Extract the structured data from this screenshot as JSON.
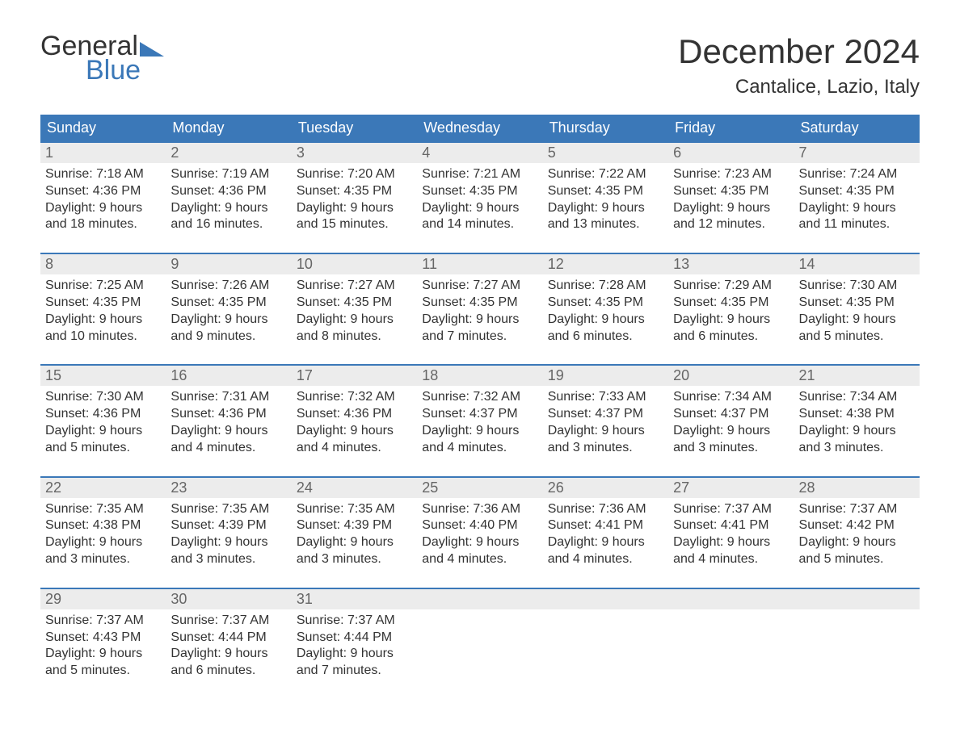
{
  "brand": {
    "part1": "General",
    "part2": "Blue",
    "accent": "#3b78b8"
  },
  "title": "December 2024",
  "location": "Cantalice, Lazio, Italy",
  "colors": {
    "header_bg": "#3b78b8",
    "header_text": "#ffffff",
    "daynum_bg": "#ececec",
    "daynum_text": "#666666",
    "body_text": "#333333",
    "page_bg": "#ffffff"
  },
  "day_names": [
    "Sunday",
    "Monday",
    "Tuesday",
    "Wednesday",
    "Thursday",
    "Friday",
    "Saturday"
  ],
  "weeks": [
    [
      {
        "num": "1",
        "sunrise": "7:18 AM",
        "sunset": "4:36 PM",
        "daylight": "9 hours and 18 minutes."
      },
      {
        "num": "2",
        "sunrise": "7:19 AM",
        "sunset": "4:36 PM",
        "daylight": "9 hours and 16 minutes."
      },
      {
        "num": "3",
        "sunrise": "7:20 AM",
        "sunset": "4:35 PM",
        "daylight": "9 hours and 15 minutes."
      },
      {
        "num": "4",
        "sunrise": "7:21 AM",
        "sunset": "4:35 PM",
        "daylight": "9 hours and 14 minutes."
      },
      {
        "num": "5",
        "sunrise": "7:22 AM",
        "sunset": "4:35 PM",
        "daylight": "9 hours and 13 minutes."
      },
      {
        "num": "6",
        "sunrise": "7:23 AM",
        "sunset": "4:35 PM",
        "daylight": "9 hours and 12 minutes."
      },
      {
        "num": "7",
        "sunrise": "7:24 AM",
        "sunset": "4:35 PM",
        "daylight": "9 hours and 11 minutes."
      }
    ],
    [
      {
        "num": "8",
        "sunrise": "7:25 AM",
        "sunset": "4:35 PM",
        "daylight": "9 hours and 10 minutes."
      },
      {
        "num": "9",
        "sunrise": "7:26 AM",
        "sunset": "4:35 PM",
        "daylight": "9 hours and 9 minutes."
      },
      {
        "num": "10",
        "sunrise": "7:27 AM",
        "sunset": "4:35 PM",
        "daylight": "9 hours and 8 minutes."
      },
      {
        "num": "11",
        "sunrise": "7:27 AM",
        "sunset": "4:35 PM",
        "daylight": "9 hours and 7 minutes."
      },
      {
        "num": "12",
        "sunrise": "7:28 AM",
        "sunset": "4:35 PM",
        "daylight": "9 hours and 6 minutes."
      },
      {
        "num": "13",
        "sunrise": "7:29 AM",
        "sunset": "4:35 PM",
        "daylight": "9 hours and 6 minutes."
      },
      {
        "num": "14",
        "sunrise": "7:30 AM",
        "sunset": "4:35 PM",
        "daylight": "9 hours and 5 minutes."
      }
    ],
    [
      {
        "num": "15",
        "sunrise": "7:30 AM",
        "sunset": "4:36 PM",
        "daylight": "9 hours and 5 minutes."
      },
      {
        "num": "16",
        "sunrise": "7:31 AM",
        "sunset": "4:36 PM",
        "daylight": "9 hours and 4 minutes."
      },
      {
        "num": "17",
        "sunrise": "7:32 AM",
        "sunset": "4:36 PM",
        "daylight": "9 hours and 4 minutes."
      },
      {
        "num": "18",
        "sunrise": "7:32 AM",
        "sunset": "4:37 PM",
        "daylight": "9 hours and 4 minutes."
      },
      {
        "num": "19",
        "sunrise": "7:33 AM",
        "sunset": "4:37 PM",
        "daylight": "9 hours and 3 minutes."
      },
      {
        "num": "20",
        "sunrise": "7:34 AM",
        "sunset": "4:37 PM",
        "daylight": "9 hours and 3 minutes."
      },
      {
        "num": "21",
        "sunrise": "7:34 AM",
        "sunset": "4:38 PM",
        "daylight": "9 hours and 3 minutes."
      }
    ],
    [
      {
        "num": "22",
        "sunrise": "7:35 AM",
        "sunset": "4:38 PM",
        "daylight": "9 hours and 3 minutes."
      },
      {
        "num": "23",
        "sunrise": "7:35 AM",
        "sunset": "4:39 PM",
        "daylight": "9 hours and 3 minutes."
      },
      {
        "num": "24",
        "sunrise": "7:35 AM",
        "sunset": "4:39 PM",
        "daylight": "9 hours and 3 minutes."
      },
      {
        "num": "25",
        "sunrise": "7:36 AM",
        "sunset": "4:40 PM",
        "daylight": "9 hours and 4 minutes."
      },
      {
        "num": "26",
        "sunrise": "7:36 AM",
        "sunset": "4:41 PM",
        "daylight": "9 hours and 4 minutes."
      },
      {
        "num": "27",
        "sunrise": "7:37 AM",
        "sunset": "4:41 PM",
        "daylight": "9 hours and 4 minutes."
      },
      {
        "num": "28",
        "sunrise": "7:37 AM",
        "sunset": "4:42 PM",
        "daylight": "9 hours and 5 minutes."
      }
    ],
    [
      {
        "num": "29",
        "sunrise": "7:37 AM",
        "sunset": "4:43 PM",
        "daylight": "9 hours and 5 minutes."
      },
      {
        "num": "30",
        "sunrise": "7:37 AM",
        "sunset": "4:44 PM",
        "daylight": "9 hours and 6 minutes."
      },
      {
        "num": "31",
        "sunrise": "7:37 AM",
        "sunset": "4:44 PM",
        "daylight": "9 hours and 7 minutes."
      },
      null,
      null,
      null,
      null
    ]
  ],
  "labels": {
    "sunrise": "Sunrise: ",
    "sunset": "Sunset: ",
    "daylight": "Daylight: "
  }
}
